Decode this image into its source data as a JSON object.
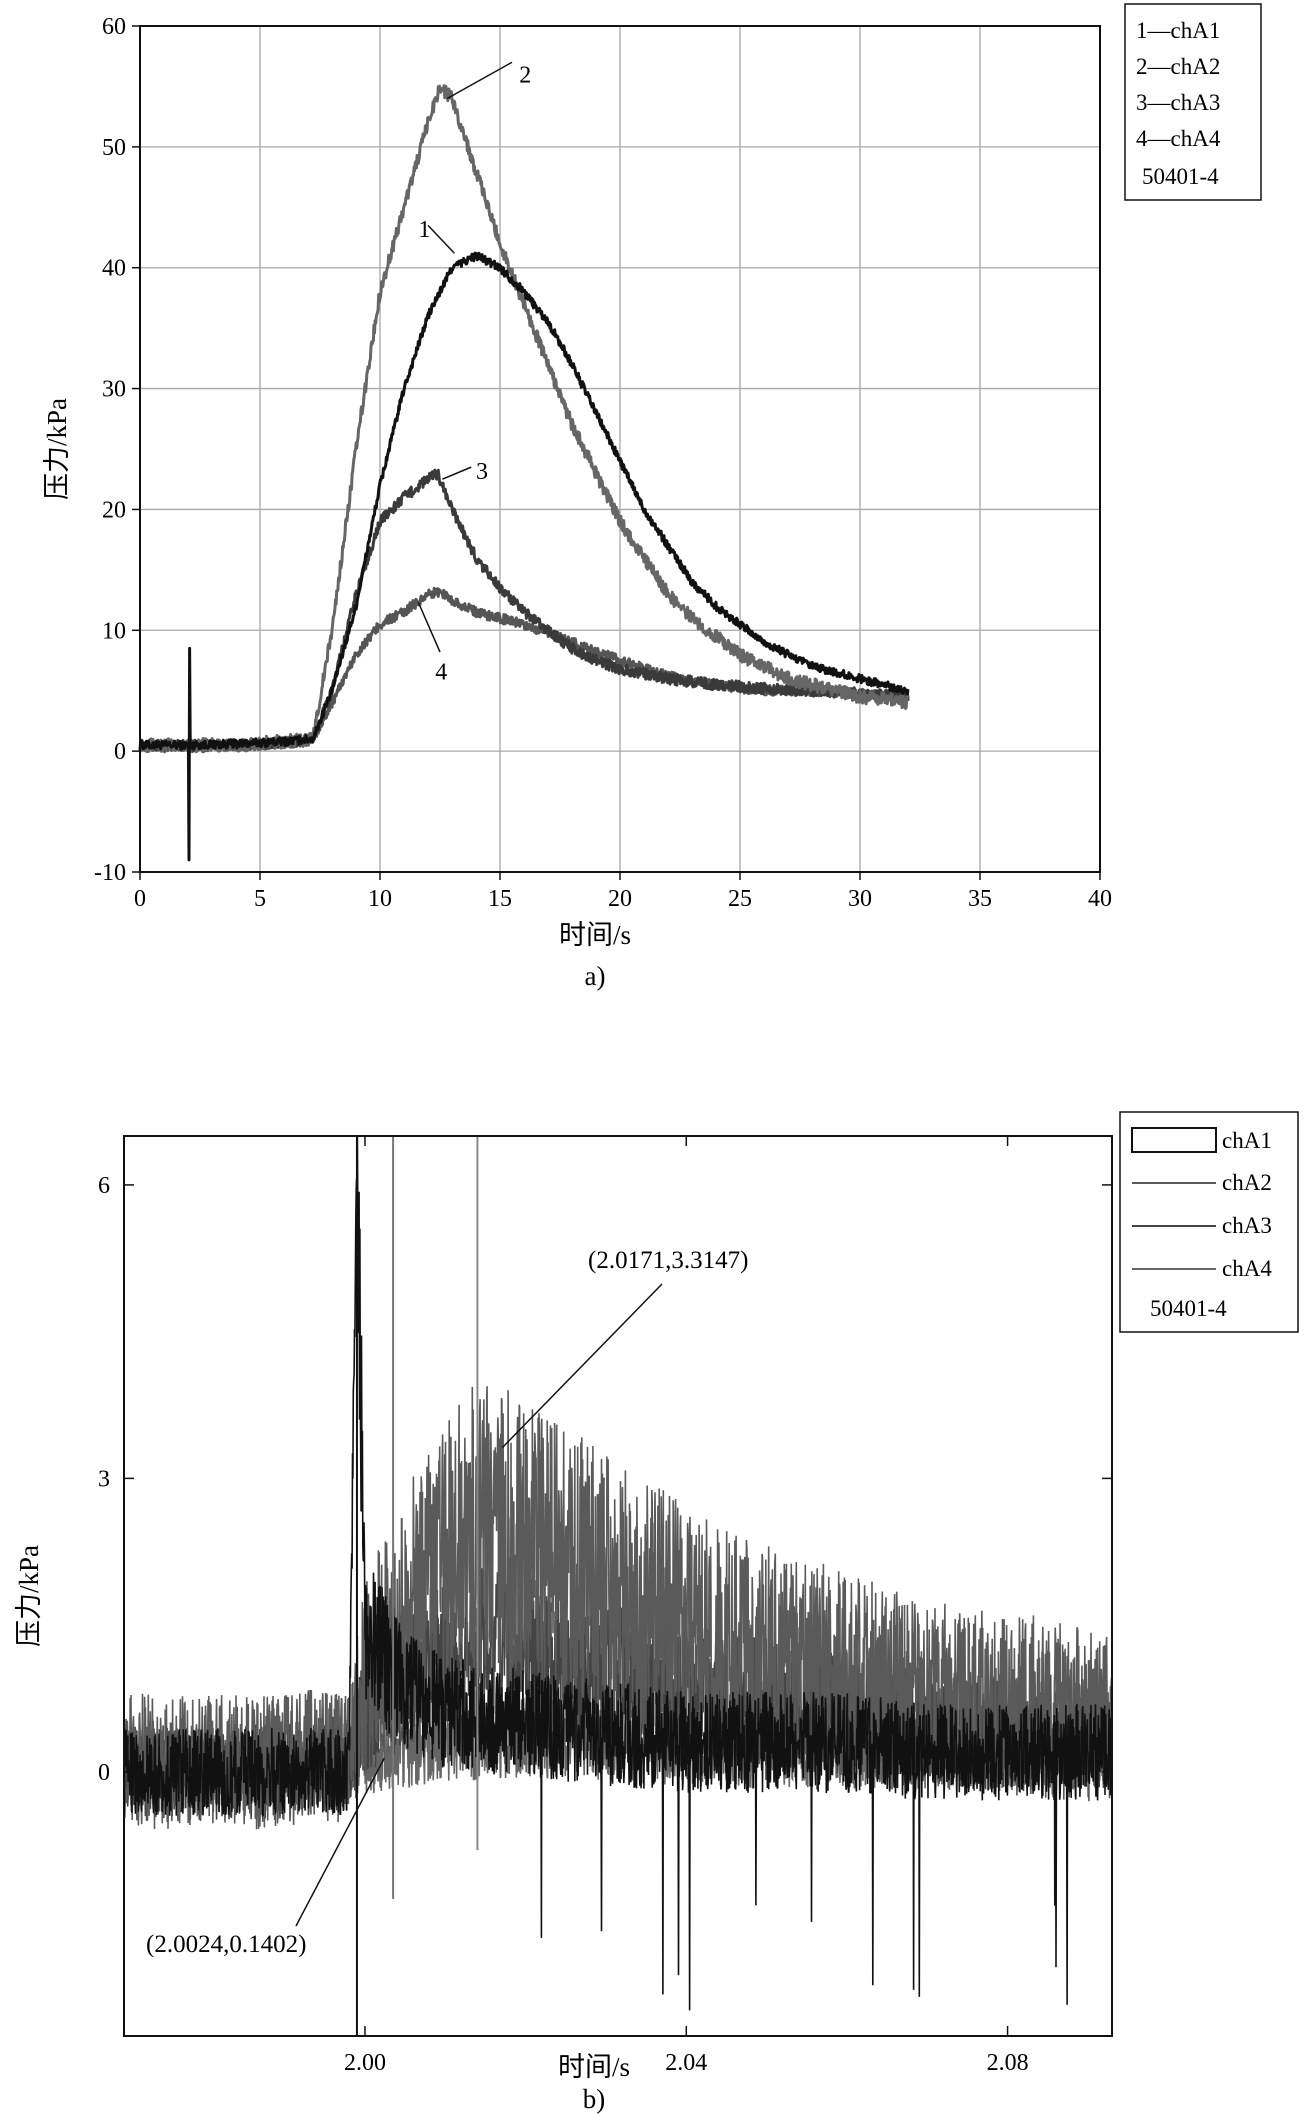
{
  "chart_data": [
    {
      "panel_label": "a)",
      "type": "line",
      "xlabel": "时间/s",
      "ylabel": "压力/kPa",
      "xlim": [
        0,
        40
      ],
      "ylim": [
        -10,
        60
      ],
      "xticks": [
        0,
        5,
        10,
        15,
        20,
        25,
        30,
        35,
        40
      ],
      "yticks": [
        -10,
        0,
        10,
        20,
        30,
        40,
        50,
        60
      ],
      "grid": true,
      "legend_position": "top-right, outside plot",
      "legend": [
        "1—chA1",
        "2—chA2",
        "3—chA3",
        "4—chA4"
      ],
      "legend_note": "50401-4",
      "series": [
        {
          "name": "chA1",
          "label": "1",
          "color": "#111111",
          "x": [
            0,
            2,
            4,
            6,
            7.2,
            8,
            9,
            10,
            11,
            12,
            13,
            14,
            15,
            16,
            17,
            18,
            19,
            20,
            21,
            22,
            23,
            24,
            25,
            26,
            27,
            28,
            29,
            30,
            31,
            32
          ],
          "y": [
            0.5,
            0.5,
            0.6,
            0.8,
            1,
            5,
            12,
            22,
            30,
            36,
            40,
            41,
            40,
            38,
            35.5,
            32,
            28,
            24,
            20,
            17,
            14,
            12,
            10.5,
            9,
            8,
            7,
            6.5,
            6,
            5.5,
            5
          ]
        },
        {
          "name": "chA2",
          "label": "2",
          "color": "#666666",
          "x": [
            0,
            2,
            4,
            6,
            7.2,
            8,
            9,
            10,
            11,
            12,
            12.5,
            13,
            14,
            15,
            16,
            17,
            18,
            19,
            20,
            21,
            22,
            23,
            24,
            25,
            26,
            27,
            28,
            29,
            30,
            31,
            32
          ],
          "y": [
            0.5,
            0.5,
            0.5,
            0.8,
            1,
            10,
            25,
            38,
            45,
            52,
            55,
            54,
            48,
            42,
            37,
            32,
            27,
            23,
            19,
            16,
            13,
            11,
            9.5,
            8,
            7,
            6,
            5.5,
            5,
            4.5,
            4.3,
            4
          ]
        },
        {
          "name": "chA3",
          "label": "3",
          "color": "#3a3a3a",
          "x": [
            0,
            2,
            4,
            6,
            7.2,
            8,
            9,
            10,
            11,
            12,
            12.4,
            13,
            14,
            15,
            16,
            17,
            18,
            19,
            20,
            22,
            24,
            26,
            28,
            30,
            32
          ],
          "y": [
            0.5,
            0.5,
            0.5,
            0.7,
            1,
            5,
            13,
            19,
            21,
            22.5,
            23,
            20,
            16,
            13.5,
            11.5,
            10,
            8.5,
            7.5,
            6.8,
            6,
            5.5,
            5.2,
            5,
            4.8,
            4.5
          ]
        },
        {
          "name": "chA4",
          "label": "4",
          "color": "#555555",
          "x": [
            0,
            2,
            4,
            6,
            7.2,
            8,
            9,
            10,
            11,
            12,
            12.5,
            13,
            14,
            15,
            16,
            18,
            20,
            22,
            24,
            26,
            28,
            30,
            32
          ],
          "y": [
            0.3,
            0.3,
            0.4,
            0.6,
            1,
            4,
            8,
            10.5,
            11.5,
            13,
            13.2,
            12.5,
            11.5,
            11,
            10.5,
            9,
            7.5,
            6.2,
            5.5,
            5,
            5,
            4.8,
            4.5
          ]
        }
      ]
    },
    {
      "panel_label": "b)",
      "type": "line",
      "xlabel": "时间/s",
      "ylabel": "压力/kPa",
      "xlim": [
        1.97,
        2.093
      ],
      "ylim": [
        -2.7,
        6.5
      ],
      "xticks": [
        2.0,
        2.04,
        2.08
      ],
      "xtick_labels": [
        "2.00",
        "2.04",
        "2.08"
      ],
      "yticks": [
        0,
        3,
        6
      ],
      "grid": false,
      "legend_position": "top-right, outside plot",
      "legend": [
        "chA1",
        "chA2",
        "chA3",
        "chA4"
      ],
      "legend_note": "50401-4",
      "annotations": [
        {
          "text": "(2.0171,3.3147)",
          "x": 2.0171,
          "y": 3.3147
        },
        {
          "text": "(2.0024,0.1402)",
          "x": 2.0024,
          "y": 0.1402
        }
      ],
      "series": [
        {
          "name": "chA1",
          "color": "#111111",
          "x": [
            1.97,
            1.98,
            1.99,
            1.998,
            1.999,
            2.0,
            2.005,
            2.01,
            2.02,
            2.03,
            2.04,
            2.05,
            2.06,
            2.07,
            2.08,
            2.09,
            2.093
          ],
          "y": [
            0,
            0,
            0,
            0,
            6.4,
            1.5,
            0.8,
            0.6,
            0.5,
            0.4,
            0.3,
            0.3,
            0.3,
            0.2,
            0.2,
            0.2,
            0.2
          ]
        },
        {
          "name": "chA2",
          "color": "#5a5a5a",
          "x": [
            1.97,
            1.98,
            1.99,
            1.998,
            2.0,
            2.005,
            2.01,
            2.015,
            2.02,
            2.03,
            2.04,
            2.05,
            2.06,
            2.07,
            2.08,
            2.09,
            2.093
          ],
          "y": [
            0.1,
            0.1,
            0.1,
            0.2,
            1.0,
            1.6,
            2.2,
            2.5,
            2.3,
            1.9,
            1.5,
            1.2,
            1.0,
            0.8,
            0.7,
            0.6,
            0.6
          ]
        },
        {
          "name": "chA3",
          "color": "#444444",
          "x": [
            1.97,
            1.98,
            1.99,
            1.998,
            2.0,
            2.005,
            2.01,
            2.015,
            2.02,
            2.03,
            2.04,
            2.05,
            2.06,
            2.07,
            2.08,
            2.09,
            2.093
          ],
          "y": [
            0,
            0,
            0,
            0.1,
            0.6,
            1.0,
            1.2,
            1.3,
            1.2,
            1.0,
            0.8,
            0.7,
            0.6,
            0.5,
            0.4,
            0.4,
            0.4
          ]
        },
        {
          "name": "chA4",
          "color": "#666666",
          "x": [
            1.97,
            1.98,
            1.99,
            1.998,
            2.0,
            2.01,
            2.02,
            2.03,
            2.04,
            2.05,
            2.06,
            2.07,
            2.08,
            2.09,
            2.093
          ],
          "y": [
            0,
            0,
            0,
            0,
            0.14,
            0.3,
            0.35,
            0.3,
            0.25,
            0.2,
            0.2,
            0.2,
            0.2,
            0.2,
            0.2
          ]
        }
      ]
    }
  ]
}
